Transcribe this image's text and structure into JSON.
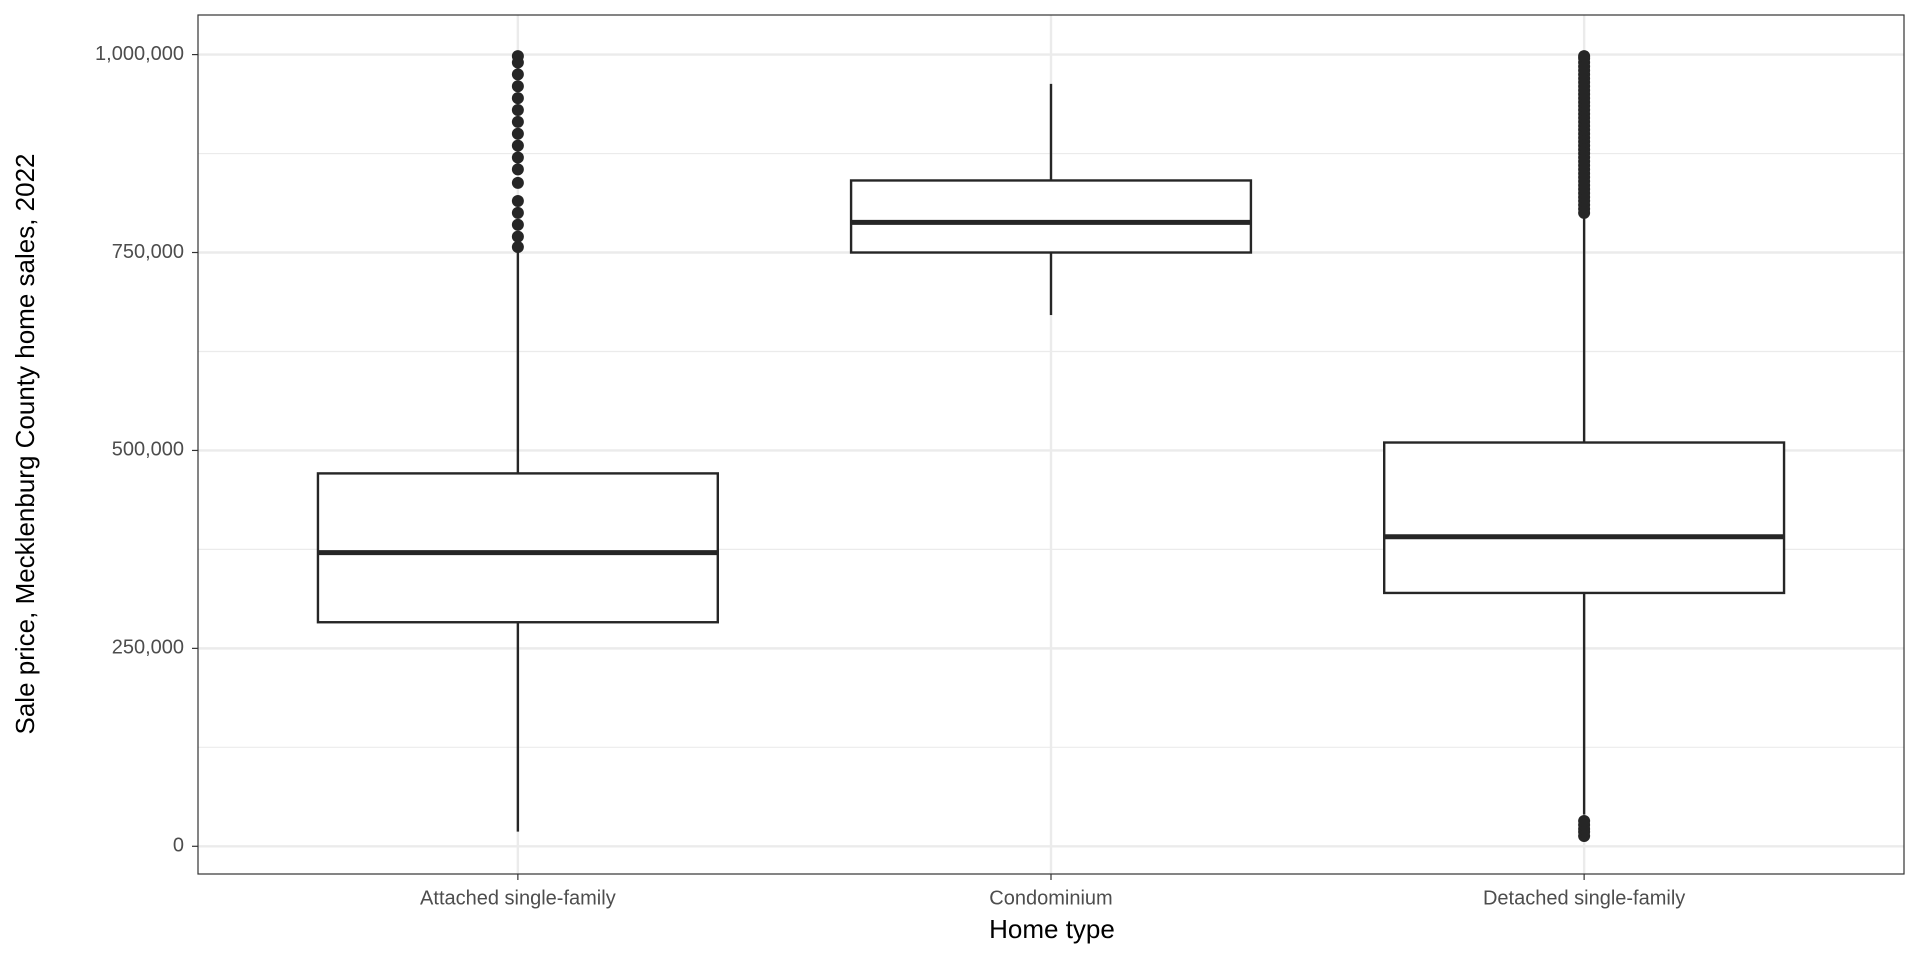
{
  "chart_data": {
    "type": "box",
    "x_label": "Home type",
    "y_label": "Sale price, Mecklenburg County home sales, 2022",
    "categories": [
      "Attached single-family",
      "Condominium",
      "Detached single-family"
    ],
    "boxes": [
      {
        "whisker_low": 18500,
        "q1": 283000,
        "median": 371000,
        "q3": 471000,
        "whisker_high": 752000,
        "outliers": [
          757000,
          770000,
          785000,
          800000,
          815000,
          838000,
          855000,
          870000,
          885000,
          900000,
          915000,
          930000,
          945000,
          960000,
          975000,
          990000,
          998000
        ]
      },
      {
        "whisker_low": 671000,
        "q1": 750000,
        "median": 788000,
        "q3": 841000,
        "whisker_high": 963000,
        "outliers": []
      },
      {
        "whisker_low": 40000,
        "q1": 320000,
        "median": 391000,
        "q3": 510000,
        "whisker_high": 795000,
        "outliers": [
          13000,
          18000,
          22000,
          27000,
          32000,
          800000,
          805000,
          810000,
          815000,
          820000,
          825000,
          830000,
          835000,
          840000,
          845000,
          850000,
          855000,
          860000,
          865000,
          870000,
          875000,
          880000,
          885000,
          890000,
          895000,
          900000,
          905000,
          910000,
          915000,
          920000,
          925000,
          930000,
          935000,
          940000,
          945000,
          950000,
          955000,
          960000,
          965000,
          970000,
          975000,
          980000,
          985000,
          990000,
          995000,
          998000
        ]
      }
    ],
    "color": "#262626",
    "ylim": [
      -35000,
      1050000
    ],
    "yticks": [
      {
        "value": 0,
        "label": "0"
      },
      {
        "value": 250000,
        "label": "250,000"
      },
      {
        "value": 500000,
        "label": "500,000"
      },
      {
        "value": 750000,
        "label": "750,000"
      },
      {
        "value": 1000000,
        "label": "1,000,000"
      }
    ],
    "grid": true
  }
}
